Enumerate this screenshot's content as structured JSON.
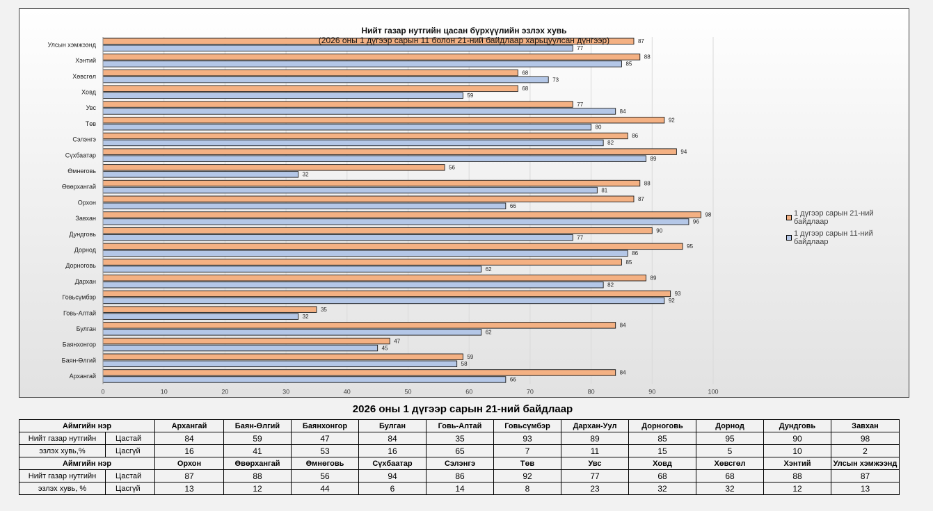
{
  "chart_data": {
    "type": "bar",
    "orientation": "horizontal",
    "title": "Нийт газар нутгийн цасан бүрхүүлийн эзлэх хувь",
    "subtitle": "(2026 оны 1 дүгээр сарын 11 болон 21-ний байдлаар харьцуулсан дүнгээр)",
    "categories": [
      "Улсын хэмжээнд",
      "Хэнтий",
      "Хөвсгөл",
      "Ховд",
      "Увс",
      "Төв",
      "Сэлэнгэ",
      "Сүхбаатар",
      "Өмнөговь",
      "Өвөрхангай",
      "Орхон",
      "Завхан",
      "Дундговь",
      "Дорнод",
      "Дорноговь",
      "Дархан",
      "Говьсүмбэр",
      "Говь-Алтай",
      "Булган",
      "Баянхонгор",
      "Баян-Өлгий",
      "Архангай"
    ],
    "series": [
      {
        "name": "1 дүгээр сарын 21-ний байдлаар",
        "color": "#f4b183",
        "values": [
          87,
          88,
          68,
          68,
          77,
          92,
          86,
          94,
          56,
          88,
          87,
          98,
          90,
          95,
          85,
          89,
          93,
          35,
          84,
          47,
          59,
          84
        ]
      },
      {
        "name": "1 дүгээр сарын 11-ний байдлаар",
        "color": "#b4c7e7",
        "values": [
          77,
          85,
          73,
          59,
          84,
          80,
          82,
          89,
          32,
          81,
          66,
          96,
          77,
          86,
          62,
          82,
          92,
          32,
          62,
          45,
          58,
          66
        ]
      }
    ],
    "xlim": [
      0,
      100
    ],
    "xticks": [
      "0",
      "10",
      "20",
      "30",
      "40",
      "50",
      "60",
      "70",
      "80",
      "90",
      "100"
    ],
    "grid": true,
    "legend": "right"
  },
  "table": {
    "title": "2026 оны 1 дүгээр сарын 21-ний байдлаар",
    "header_label": "Аймгийн нэр",
    "row_label_line1": "Нийт газар нутгийн",
    "row_label_line2a": "эзлэх хувь,%",
    "row_label_line2b": "эзлэх хувь, %",
    "snow_label": "Цастай",
    "nosnow_label": "Цасгүй",
    "block1": {
      "names": [
        "Архангай",
        "Баян-Өлгий",
        "Баянхонгор",
        "Булган",
        "Говь-Алтай",
        "Говьсүмбэр",
        "Дархан-Уул",
        "Дорноговь",
        "Дорнод",
        "Дундговь",
        "Завхан"
      ],
      "snow": [
        "84",
        "59",
        "47",
        "84",
        "35",
        "93",
        "89",
        "85",
        "95",
        "90",
        "98"
      ],
      "nosnow": [
        "16",
        "41",
        "53",
        "16",
        "65",
        "7",
        "11",
        "15",
        "5",
        "10",
        "2"
      ]
    },
    "block2": {
      "names": [
        "Орхон",
        "Өвөрхангай",
        "Өмнөговь",
        "Сүхбаатар",
        "Сэлэнгэ",
        "Төв",
        "Увс",
        "Ховд",
        "Хөвсгөл",
        "Хэнтий",
        "Улсын хэмжээнд"
      ],
      "snow": [
        "87",
        "88",
        "56",
        "94",
        "86",
        "92",
        "77",
        "68",
        "68",
        "88",
        "87"
      ],
      "nosnow": [
        "13",
        "12",
        "44",
        "6",
        "14",
        "8",
        "23",
        "32",
        "32",
        "12",
        "13"
      ]
    }
  }
}
